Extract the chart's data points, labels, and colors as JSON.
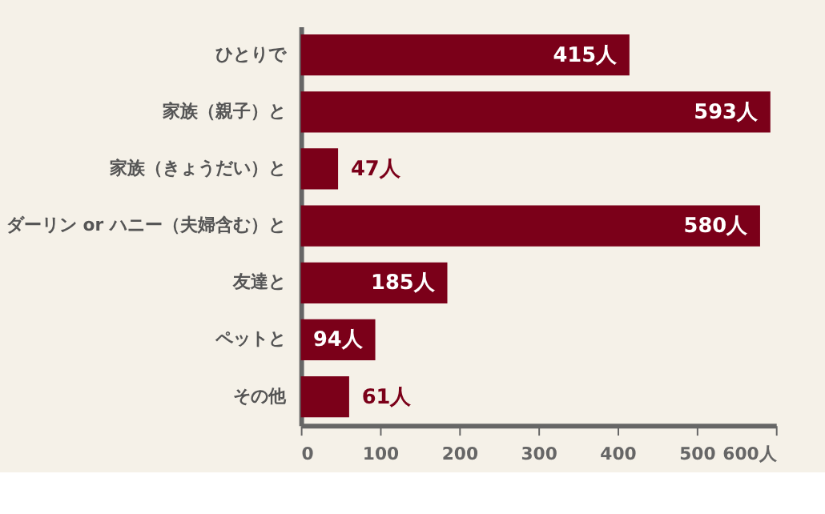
{
  "chart_data": {
    "type": "bar",
    "orientation": "horizontal",
    "categories": [
      "ひとりで",
      "家族（親子）と",
      "家族（きょうだい）と",
      "ダーリン or ハニー（夫婦含む）と",
      "友達と",
      "ペットと",
      "その他"
    ],
    "values": [
      415,
      593,
      47,
      580,
      185,
      94,
      61
    ],
    "value_labels": [
      "415人",
      "593人",
      "47人",
      "580人",
      "185人",
      "94人",
      "61人"
    ],
    "color": "#7b0019",
    "xlim": [
      0,
      600
    ],
    "xticks": [
      0,
      100,
      200,
      300,
      400,
      500,
      {
        "value": 600,
        "label": "600人"
      }
    ],
    "grid": false
  }
}
